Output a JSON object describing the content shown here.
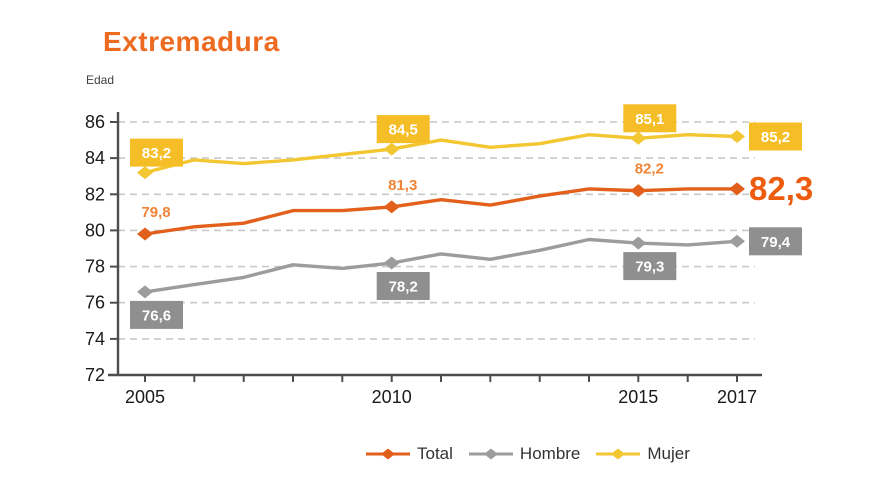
{
  "page": {
    "title": "Extremadura",
    "y_axis_label": "Edad"
  },
  "colors": {
    "title": "#ED6B21",
    "axis": "#4D4D4D",
    "grid": "#C9C9C9",
    "tick_label": "#1A1A1A",
    "legend_text": "#333333",
    "background": "#FFFFFF"
  },
  "chart_data": {
    "type": "line",
    "title": "Extremadura",
    "ylabel": "Edad",
    "xlabel": "",
    "x": [
      2005,
      2006,
      2007,
      2008,
      2009,
      2010,
      2011,
      2012,
      2013,
      2014,
      2015,
      2016,
      2017
    ],
    "x_tick_labels": [
      {
        "year": 2005,
        "label": "2005"
      },
      {
        "year": 2010,
        "label": "2010"
      },
      {
        "year": 2015,
        "label": "2015"
      },
      {
        "year": 2017,
        "label": "2017"
      }
    ],
    "y_ticks": [
      72,
      74,
      76,
      78,
      80,
      82,
      84,
      86
    ],
    "ylim": [
      72,
      86
    ],
    "grid": "horizontal-dashed",
    "legend_position": "bottom",
    "series": [
      {
        "name": "Total",
        "color": "#E2601C",
        "label_color": "#F08437",
        "big_label_color": "#ED5C0F",
        "values": [
          79.8,
          80.2,
          80.4,
          81.1,
          81.1,
          81.3,
          81.7,
          81.4,
          81.9,
          82.3,
          82.2,
          82.3,
          82.3
        ],
        "marker_years": [
          2005,
          2010,
          2015,
          2017
        ],
        "point_labels": [
          {
            "year": 2005,
            "text": "79,8",
            "placement": "above"
          },
          {
            "year": 2010,
            "text": "81,3",
            "placement": "above"
          },
          {
            "year": 2015,
            "text": "82,2",
            "placement": "above"
          },
          {
            "year": 2017,
            "text": "82,3",
            "placement": "right-big"
          }
        ]
      },
      {
        "name": "Hombre",
        "color": "#9C9C9C",
        "box_color": "#8F8F8F",
        "box_text_color": "#FFFFFF",
        "values": [
          76.6,
          77.0,
          77.4,
          78.1,
          77.9,
          78.2,
          78.7,
          78.4,
          78.9,
          79.5,
          79.3,
          79.2,
          79.4
        ],
        "marker_years": [
          2005,
          2010,
          2015,
          2017
        ],
        "point_labels": [
          {
            "year": 2005,
            "text": "76,6",
            "placement": "below-box"
          },
          {
            "year": 2010,
            "text": "78,2",
            "placement": "below-box"
          },
          {
            "year": 2015,
            "text": "79,3",
            "placement": "below-box"
          },
          {
            "year": 2017,
            "text": "79,4",
            "placement": "right-box"
          }
        ]
      },
      {
        "name": "Mujer",
        "color": "#F3C732",
        "box_color": "#F5BE26",
        "box_text_color": "#FFFFFF",
        "values": [
          83.2,
          83.9,
          83.7,
          83.9,
          84.2,
          84.5,
          85.0,
          84.6,
          84.8,
          85.3,
          85.1,
          85.3,
          85.2
        ],
        "marker_years": [
          2005,
          2010,
          2015,
          2017
        ],
        "point_labels": [
          {
            "year": 2005,
            "text": "83,2",
            "placement": "above-box"
          },
          {
            "year": 2010,
            "text": "84,5",
            "placement": "above-box"
          },
          {
            "year": 2015,
            "text": "85,1",
            "placement": "above-box"
          },
          {
            "year": 2017,
            "text": "85,2",
            "placement": "right-box"
          }
        ]
      }
    ]
  }
}
